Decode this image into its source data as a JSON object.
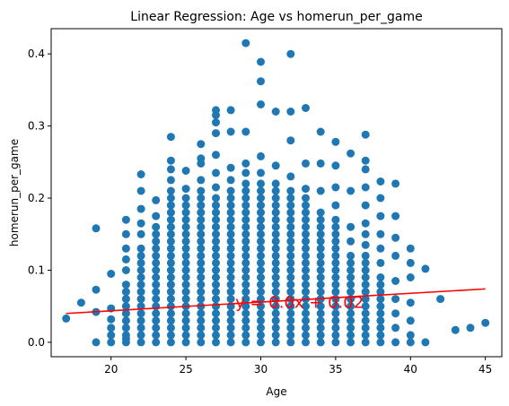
{
  "chart_data": {
    "type": "scatter",
    "title": "Linear Regression: Age vs homerun_per_game",
    "xlabel": "Age",
    "ylabel": "homerun_per_game",
    "xlim": [
      16,
      46.1
    ],
    "ylim": [
      -0.02,
      0.435
    ],
    "xticks": [
      20,
      25,
      30,
      35,
      40,
      45
    ],
    "yticks": [
      0.0,
      0.1,
      0.2,
      0.3,
      0.4
    ],
    "ytick_labels": [
      "0.0",
      "0.1",
      "0.2",
      "0.3",
      "0.4"
    ],
    "grid": false,
    "point_color": "#1f77b4",
    "line_color": "#ff0000",
    "points": [
      [
        17,
        0.033
      ],
      [
        18,
        0.055
      ],
      [
        19,
        0.0
      ],
      [
        19,
        0.042
      ],
      [
        19,
        0.073
      ],
      [
        19,
        0.158
      ],
      [
        20,
        0.0
      ],
      [
        20,
        0.01
      ],
      [
        20,
        0.02
      ],
      [
        20,
        0.032
      ],
      [
        20,
        0.047
      ],
      [
        20,
        0.095
      ],
      [
        21,
        0.0
      ],
      [
        21,
        0.005
      ],
      [
        21,
        0.01
      ],
      [
        21,
        0.02
      ],
      [
        21,
        0.03
      ],
      [
        21,
        0.04
      ],
      [
        21,
        0.05
      ],
      [
        21,
        0.06
      ],
      [
        21,
        0.07
      ],
      [
        21,
        0.08
      ],
      [
        21,
        0.1
      ],
      [
        21,
        0.115
      ],
      [
        21,
        0.13
      ],
      [
        21,
        0.15
      ],
      [
        21,
        0.17
      ],
      [
        22,
        0.0
      ],
      [
        22,
        0.01
      ],
      [
        22,
        0.02
      ],
      [
        22,
        0.03
      ],
      [
        22,
        0.04
      ],
      [
        22,
        0.05
      ],
      [
        22,
        0.06
      ],
      [
        22,
        0.07
      ],
      [
        22,
        0.08
      ],
      [
        22,
        0.09
      ],
      [
        22,
        0.1
      ],
      [
        22,
        0.11
      ],
      [
        22,
        0.12
      ],
      [
        22,
        0.13
      ],
      [
        22,
        0.15
      ],
      [
        22,
        0.165
      ],
      [
        22,
        0.185
      ],
      [
        22,
        0.21
      ],
      [
        22,
        0.233
      ],
      [
        23,
        0.0
      ],
      [
        23,
        0.01
      ],
      [
        23,
        0.02
      ],
      [
        23,
        0.03
      ],
      [
        23,
        0.04
      ],
      [
        23,
        0.05
      ],
      [
        23,
        0.06
      ],
      [
        23,
        0.07
      ],
      [
        23,
        0.08
      ],
      [
        23,
        0.09
      ],
      [
        23,
        0.1
      ],
      [
        23,
        0.11
      ],
      [
        23,
        0.12
      ],
      [
        23,
        0.13
      ],
      [
        23,
        0.14
      ],
      [
        23,
        0.15
      ],
      [
        23,
        0.16
      ],
      [
        23,
        0.175
      ],
      [
        23,
        0.197
      ],
      [
        24,
        0.0
      ],
      [
        24,
        0.01
      ],
      [
        24,
        0.02
      ],
      [
        24,
        0.03
      ],
      [
        24,
        0.04
      ],
      [
        24,
        0.05
      ],
      [
        24,
        0.06
      ],
      [
        24,
        0.07
      ],
      [
        24,
        0.08
      ],
      [
        24,
        0.09
      ],
      [
        24,
        0.1
      ],
      [
        24,
        0.11
      ],
      [
        24,
        0.12
      ],
      [
        24,
        0.13
      ],
      [
        24,
        0.14
      ],
      [
        24,
        0.15
      ],
      [
        24,
        0.16
      ],
      [
        24,
        0.17
      ],
      [
        24,
        0.18
      ],
      [
        24,
        0.19
      ],
      [
        24,
        0.2
      ],
      [
        24,
        0.21
      ],
      [
        24,
        0.225
      ],
      [
        24,
        0.24
      ],
      [
        24,
        0.252
      ],
      [
        24,
        0.285
      ],
      [
        25,
        0.0
      ],
      [
        25,
        0.01
      ],
      [
        25,
        0.02
      ],
      [
        25,
        0.03
      ],
      [
        25,
        0.04
      ],
      [
        25,
        0.05
      ],
      [
        25,
        0.06
      ],
      [
        25,
        0.07
      ],
      [
        25,
        0.08
      ],
      [
        25,
        0.09
      ],
      [
        25,
        0.1
      ],
      [
        25,
        0.11
      ],
      [
        25,
        0.12
      ],
      [
        25,
        0.13
      ],
      [
        25,
        0.14
      ],
      [
        25,
        0.15
      ],
      [
        25,
        0.16
      ],
      [
        25,
        0.17
      ],
      [
        25,
        0.18
      ],
      [
        25,
        0.19
      ],
      [
        25,
        0.2
      ],
      [
        25,
        0.213
      ],
      [
        25,
        0.238
      ],
      [
        26,
        0.0
      ],
      [
        26,
        0.01
      ],
      [
        26,
        0.02
      ],
      [
        26,
        0.03
      ],
      [
        26,
        0.04
      ],
      [
        26,
        0.05
      ],
      [
        26,
        0.06
      ],
      [
        26,
        0.07
      ],
      [
        26,
        0.08
      ],
      [
        26,
        0.09
      ],
      [
        26,
        0.1
      ],
      [
        26,
        0.11
      ],
      [
        26,
        0.12
      ],
      [
        26,
        0.13
      ],
      [
        26,
        0.14
      ],
      [
        26,
        0.15
      ],
      [
        26,
        0.16
      ],
      [
        26,
        0.17
      ],
      [
        26,
        0.18
      ],
      [
        26,
        0.19
      ],
      [
        26,
        0.2
      ],
      [
        26,
        0.21
      ],
      [
        26,
        0.225
      ],
      [
        26,
        0.248
      ],
      [
        26,
        0.255
      ],
      [
        26,
        0.275
      ],
      [
        27,
        0.0
      ],
      [
        27,
        0.01
      ],
      [
        27,
        0.02
      ],
      [
        27,
        0.03
      ],
      [
        27,
        0.04
      ],
      [
        27,
        0.05
      ],
      [
        27,
        0.06
      ],
      [
        27,
        0.07
      ],
      [
        27,
        0.08
      ],
      [
        27,
        0.09
      ],
      [
        27,
        0.1
      ],
      [
        27,
        0.11
      ],
      [
        27,
        0.12
      ],
      [
        27,
        0.13
      ],
      [
        27,
        0.14
      ],
      [
        27,
        0.15
      ],
      [
        27,
        0.16
      ],
      [
        27,
        0.17
      ],
      [
        27,
        0.18
      ],
      [
        27,
        0.19
      ],
      [
        27,
        0.2
      ],
      [
        27,
        0.215
      ],
      [
        27,
        0.235
      ],
      [
        27,
        0.26
      ],
      [
        27,
        0.29
      ],
      [
        27,
        0.305
      ],
      [
        27,
        0.315
      ],
      [
        27,
        0.322
      ],
      [
        28,
        0.0
      ],
      [
        28,
        0.01
      ],
      [
        28,
        0.02
      ],
      [
        28,
        0.03
      ],
      [
        28,
        0.04
      ],
      [
        28,
        0.05
      ],
      [
        28,
        0.06
      ],
      [
        28,
        0.07
      ],
      [
        28,
        0.08
      ],
      [
        28,
        0.09
      ],
      [
        28,
        0.1
      ],
      [
        28,
        0.11
      ],
      [
        28,
        0.12
      ],
      [
        28,
        0.13
      ],
      [
        28,
        0.14
      ],
      [
        28,
        0.15
      ],
      [
        28,
        0.16
      ],
      [
        28,
        0.17
      ],
      [
        28,
        0.18
      ],
      [
        28,
        0.19
      ],
      [
        28,
        0.2
      ],
      [
        28,
        0.21
      ],
      [
        28,
        0.225
      ],
      [
        28,
        0.242
      ],
      [
        28,
        0.292
      ],
      [
        28,
        0.322
      ],
      [
        29,
        0.0
      ],
      [
        29,
        0.01
      ],
      [
        29,
        0.02
      ],
      [
        29,
        0.03
      ],
      [
        29,
        0.04
      ],
      [
        29,
        0.05
      ],
      [
        29,
        0.06
      ],
      [
        29,
        0.07
      ],
      [
        29,
        0.08
      ],
      [
        29,
        0.09
      ],
      [
        29,
        0.1
      ],
      [
        29,
        0.11
      ],
      [
        29,
        0.12
      ],
      [
        29,
        0.13
      ],
      [
        29,
        0.14
      ],
      [
        29,
        0.15
      ],
      [
        29,
        0.16
      ],
      [
        29,
        0.17
      ],
      [
        29,
        0.18
      ],
      [
        29,
        0.19
      ],
      [
        29,
        0.2
      ],
      [
        29,
        0.21
      ],
      [
        29,
        0.22
      ],
      [
        29,
        0.235
      ],
      [
        29,
        0.248
      ],
      [
        29,
        0.292
      ],
      [
        29,
        0.415
      ],
      [
        30,
        0.0
      ],
      [
        30,
        0.01
      ],
      [
        30,
        0.02
      ],
      [
        30,
        0.03
      ],
      [
        30,
        0.04
      ],
      [
        30,
        0.05
      ],
      [
        30,
        0.06
      ],
      [
        30,
        0.07
      ],
      [
        30,
        0.08
      ],
      [
        30,
        0.09
      ],
      [
        30,
        0.1
      ],
      [
        30,
        0.11
      ],
      [
        30,
        0.12
      ],
      [
        30,
        0.13
      ],
      [
        30,
        0.14
      ],
      [
        30,
        0.15
      ],
      [
        30,
        0.16
      ],
      [
        30,
        0.17
      ],
      [
        30,
        0.18
      ],
      [
        30,
        0.19
      ],
      [
        30,
        0.2
      ],
      [
        30,
        0.21
      ],
      [
        30,
        0.22
      ],
      [
        30,
        0.235
      ],
      [
        30,
        0.258
      ],
      [
        30,
        0.33
      ],
      [
        30,
        0.362
      ],
      [
        30,
        0.389
      ],
      [
        31,
        0.0
      ],
      [
        31,
        0.01
      ],
      [
        31,
        0.02
      ],
      [
        31,
        0.03
      ],
      [
        31,
        0.04
      ],
      [
        31,
        0.05
      ],
      [
        31,
        0.06
      ],
      [
        31,
        0.07
      ],
      [
        31,
        0.08
      ],
      [
        31,
        0.09
      ],
      [
        31,
        0.1
      ],
      [
        31,
        0.11
      ],
      [
        31,
        0.12
      ],
      [
        31,
        0.13
      ],
      [
        31,
        0.14
      ],
      [
        31,
        0.15
      ],
      [
        31,
        0.16
      ],
      [
        31,
        0.17
      ],
      [
        31,
        0.18
      ],
      [
        31,
        0.19
      ],
      [
        31,
        0.2
      ],
      [
        31,
        0.21
      ],
      [
        31,
        0.22
      ],
      [
        31,
        0.245
      ],
      [
        31,
        0.32
      ],
      [
        32,
        0.0
      ],
      [
        32,
        0.01
      ],
      [
        32,
        0.02
      ],
      [
        32,
        0.03
      ],
      [
        32,
        0.04
      ],
      [
        32,
        0.05
      ],
      [
        32,
        0.06
      ],
      [
        32,
        0.07
      ],
      [
        32,
        0.08
      ],
      [
        32,
        0.09
      ],
      [
        32,
        0.1
      ],
      [
        32,
        0.11
      ],
      [
        32,
        0.12
      ],
      [
        32,
        0.13
      ],
      [
        32,
        0.14
      ],
      [
        32,
        0.15
      ],
      [
        32,
        0.16
      ],
      [
        32,
        0.17
      ],
      [
        32,
        0.18
      ],
      [
        32,
        0.19
      ],
      [
        32,
        0.2
      ],
      [
        32,
        0.21
      ],
      [
        32,
        0.23
      ],
      [
        32,
        0.28
      ],
      [
        32,
        0.32
      ],
      [
        32,
        0.4
      ],
      [
        33,
        0.0
      ],
      [
        33,
        0.01
      ],
      [
        33,
        0.02
      ],
      [
        33,
        0.03
      ],
      [
        33,
        0.04
      ],
      [
        33,
        0.05
      ],
      [
        33,
        0.06
      ],
      [
        33,
        0.07
      ],
      [
        33,
        0.08
      ],
      [
        33,
        0.09
      ],
      [
        33,
        0.1
      ],
      [
        33,
        0.11
      ],
      [
        33,
        0.12
      ],
      [
        33,
        0.13
      ],
      [
        33,
        0.14
      ],
      [
        33,
        0.15
      ],
      [
        33,
        0.16
      ],
      [
        33,
        0.17
      ],
      [
        33,
        0.18
      ],
      [
        33,
        0.19
      ],
      [
        33,
        0.2
      ],
      [
        33,
        0.213
      ],
      [
        33,
        0.248
      ],
      [
        33,
        0.325
      ],
      [
        34,
        0.0
      ],
      [
        34,
        0.01
      ],
      [
        34,
        0.02
      ],
      [
        34,
        0.03
      ],
      [
        34,
        0.04
      ],
      [
        34,
        0.05
      ],
      [
        34,
        0.06
      ],
      [
        34,
        0.07
      ],
      [
        34,
        0.08
      ],
      [
        34,
        0.09
      ],
      [
        34,
        0.1
      ],
      [
        34,
        0.11
      ],
      [
        34,
        0.12
      ],
      [
        34,
        0.13
      ],
      [
        34,
        0.14
      ],
      [
        34,
        0.15
      ],
      [
        34,
        0.16
      ],
      [
        34,
        0.17
      ],
      [
        34,
        0.18
      ],
      [
        34,
        0.21
      ],
      [
        34,
        0.248
      ],
      [
        34,
        0.292
      ],
      [
        35,
        0.0
      ],
      [
        35,
        0.01
      ],
      [
        35,
        0.02
      ],
      [
        35,
        0.03
      ],
      [
        35,
        0.04
      ],
      [
        35,
        0.05
      ],
      [
        35,
        0.06
      ],
      [
        35,
        0.07
      ],
      [
        35,
        0.08
      ],
      [
        35,
        0.09
      ],
      [
        35,
        0.1
      ],
      [
        35,
        0.11
      ],
      [
        35,
        0.12
      ],
      [
        35,
        0.13
      ],
      [
        35,
        0.14
      ],
      [
        35,
        0.15
      ],
      [
        35,
        0.16
      ],
      [
        35,
        0.17
      ],
      [
        35,
        0.19
      ],
      [
        35,
        0.215
      ],
      [
        35,
        0.245
      ],
      [
        35,
        0.278
      ],
      [
        36,
        0.0
      ],
      [
        36,
        0.01
      ],
      [
        36,
        0.02
      ],
      [
        36,
        0.03
      ],
      [
        36,
        0.04
      ],
      [
        36,
        0.05
      ],
      [
        36,
        0.06
      ],
      [
        36,
        0.07
      ],
      [
        36,
        0.08
      ],
      [
        36,
        0.09
      ],
      [
        36,
        0.1
      ],
      [
        36,
        0.11
      ],
      [
        36,
        0.12
      ],
      [
        36,
        0.14
      ],
      [
        36,
        0.16
      ],
      [
        36,
        0.21
      ],
      [
        36,
        0.262
      ],
      [
        37,
        0.0
      ],
      [
        37,
        0.01
      ],
      [
        37,
        0.02
      ],
      [
        37,
        0.03
      ],
      [
        37,
        0.04
      ],
      [
        37,
        0.05
      ],
      [
        37,
        0.06
      ],
      [
        37,
        0.07
      ],
      [
        37,
        0.08
      ],
      [
        37,
        0.09
      ],
      [
        37,
        0.1
      ],
      [
        37,
        0.11
      ],
      [
        37,
        0.12
      ],
      [
        37,
        0.135
      ],
      [
        37,
        0.15
      ],
      [
        37,
        0.165
      ],
      [
        37,
        0.19
      ],
      [
        37,
        0.215
      ],
      [
        37,
        0.24
      ],
      [
        37,
        0.252
      ],
      [
        37,
        0.288
      ],
      [
        38,
        0.0
      ],
      [
        38,
        0.01
      ],
      [
        38,
        0.02
      ],
      [
        38,
        0.03
      ],
      [
        38,
        0.04
      ],
      [
        38,
        0.05
      ],
      [
        38,
        0.06
      ],
      [
        38,
        0.07
      ],
      [
        38,
        0.08
      ],
      [
        38,
        0.09
      ],
      [
        38,
        0.11
      ],
      [
        38,
        0.13
      ],
      [
        38,
        0.15
      ],
      [
        38,
        0.175
      ],
      [
        38,
        0.2
      ],
      [
        38,
        0.223
      ],
      [
        39,
        0.0
      ],
      [
        39,
        0.02
      ],
      [
        39,
        0.04
      ],
      [
        39,
        0.06
      ],
      [
        39,
        0.085
      ],
      [
        39,
        0.12
      ],
      [
        39,
        0.145
      ],
      [
        39,
        0.175
      ],
      [
        39,
        0.22
      ],
      [
        40,
        0.0
      ],
      [
        40,
        0.01
      ],
      [
        40,
        0.03
      ],
      [
        40,
        0.055
      ],
      [
        40,
        0.09
      ],
      [
        40,
        0.11
      ],
      [
        40,
        0.13
      ],
      [
        41,
        0.0
      ],
      [
        41,
        0.102
      ],
      [
        42,
        0.06
      ],
      [
        43,
        0.017
      ],
      [
        44,
        0.02
      ],
      [
        45,
        0.027
      ]
    ],
    "regression_line": {
      "x": [
        17,
        45
      ],
      "y": [
        0.04,
        0.074
      ]
    },
    "annotation": {
      "text": "y = 0.0x + 0.02",
      "x": 28.3,
      "y": 0.048
    }
  }
}
